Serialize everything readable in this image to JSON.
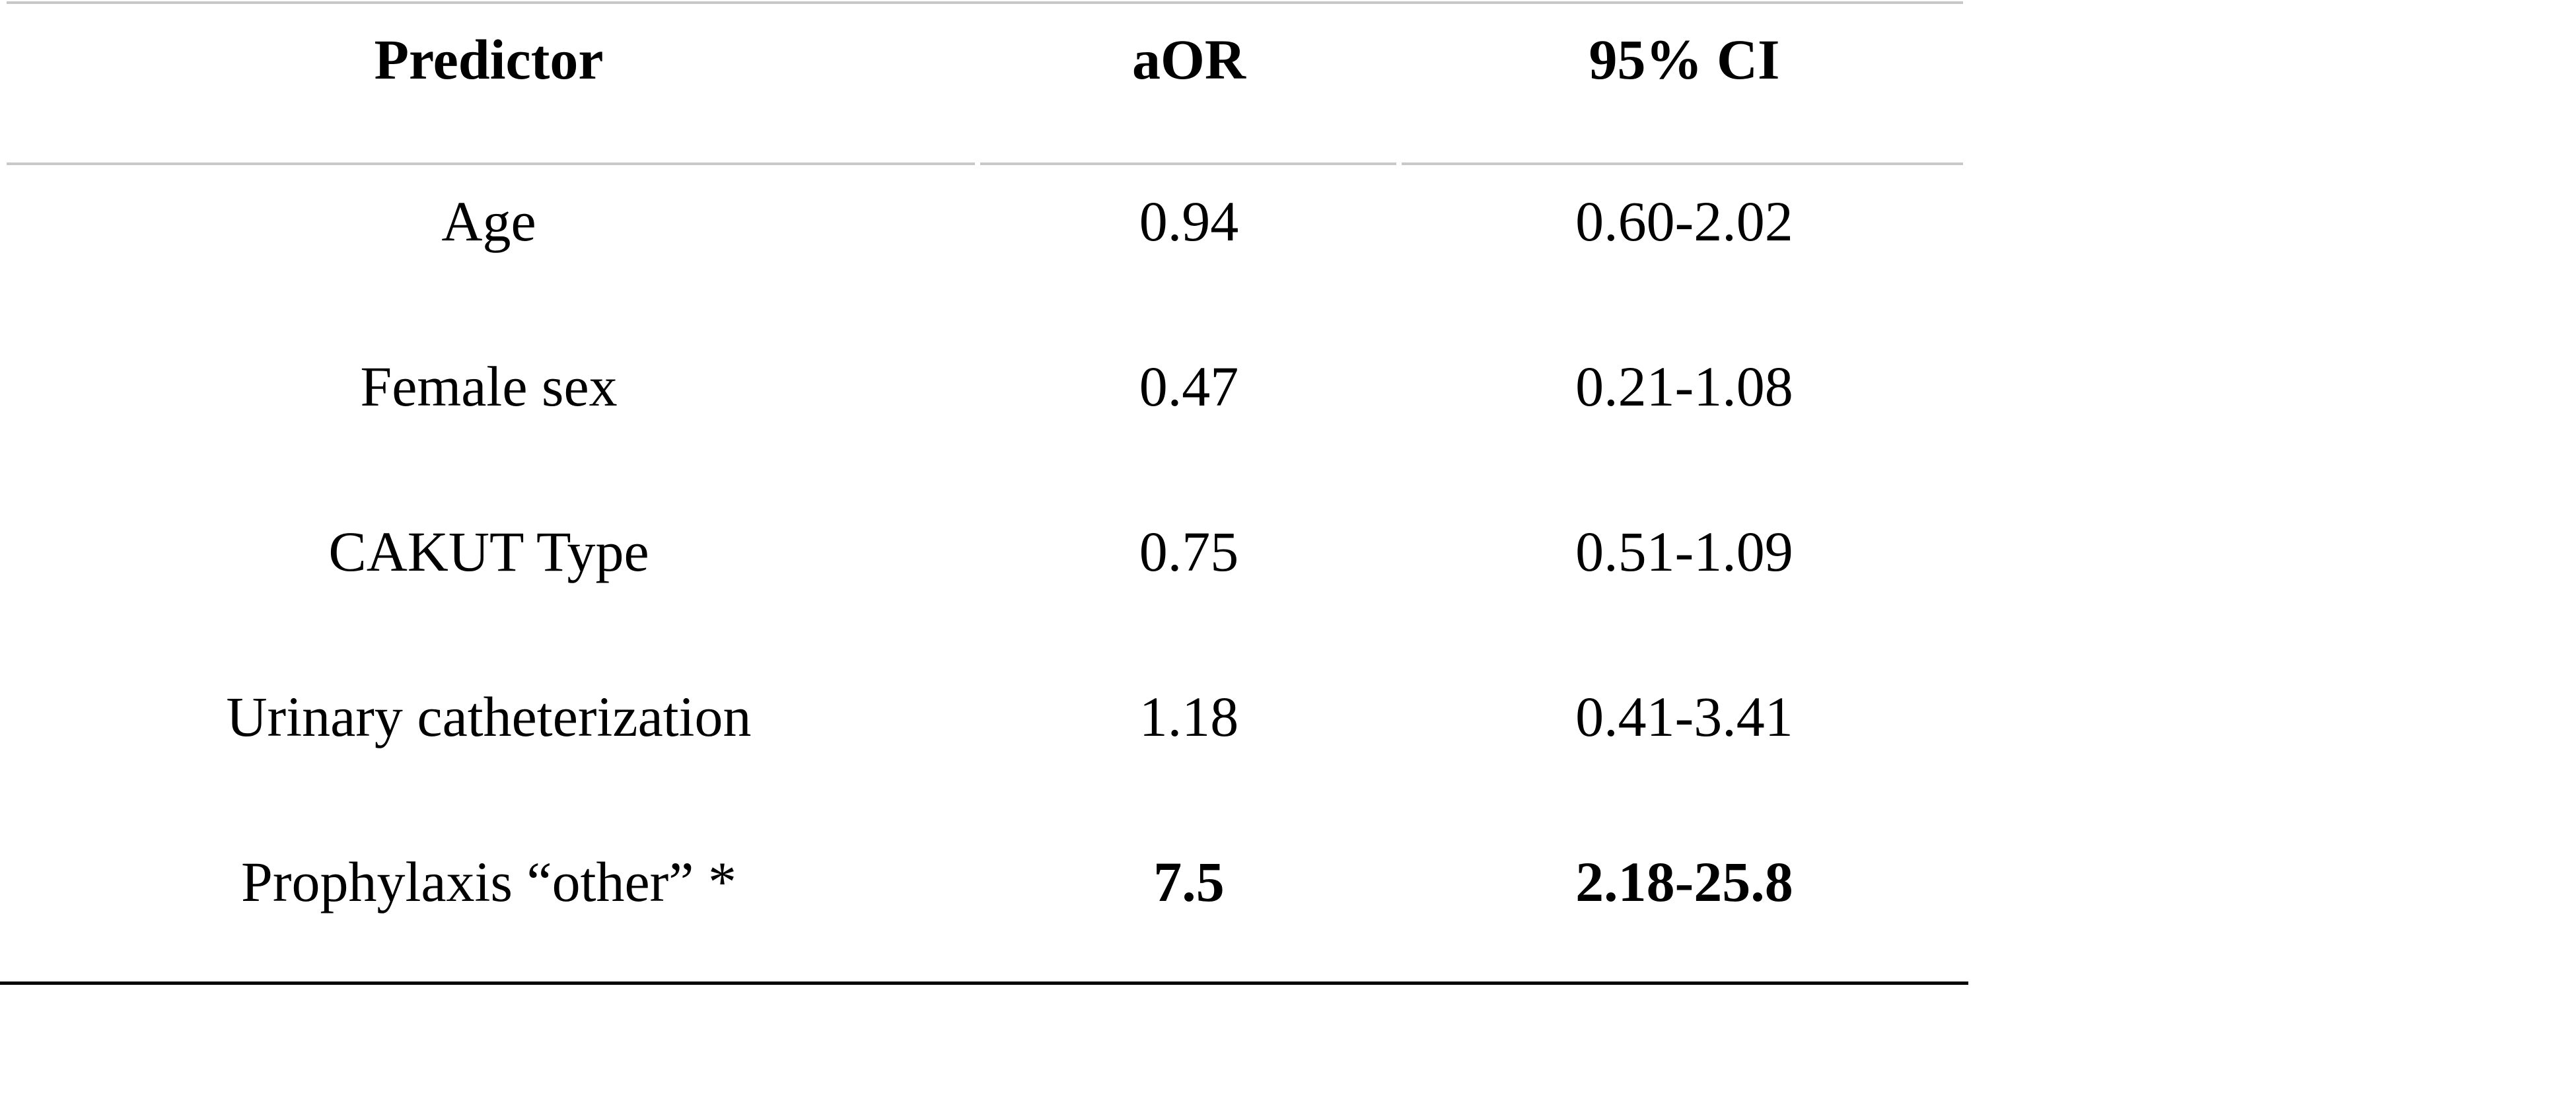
{
  "table": {
    "headers": [
      "Predictor",
      "aOR",
      "95% CI"
    ],
    "rows": [
      {
        "predictor": "Age",
        "aor": "0.94",
        "ci": "0.60-2.02"
      },
      {
        "predictor": "Female sex",
        "aor": "0.47",
        "ci": "0.21-1.08"
      },
      {
        "predictor": "CAKUT Type",
        "aor": "0.75",
        "ci": "0.51-1.09"
      },
      {
        "predictor": "Urinary catheterization",
        "aor": "1.18",
        "ci": "0.41-3.41"
      },
      {
        "predictor": "Prophylaxis “other” *",
        "aor": "7.5",
        "ci": "2.18-25.8"
      }
    ]
  },
  "colors": {
    "text": "#000000",
    "light_rule": "#c8c8c8",
    "bottom_rule": "#000000",
    "background": "#ffffff"
  }
}
